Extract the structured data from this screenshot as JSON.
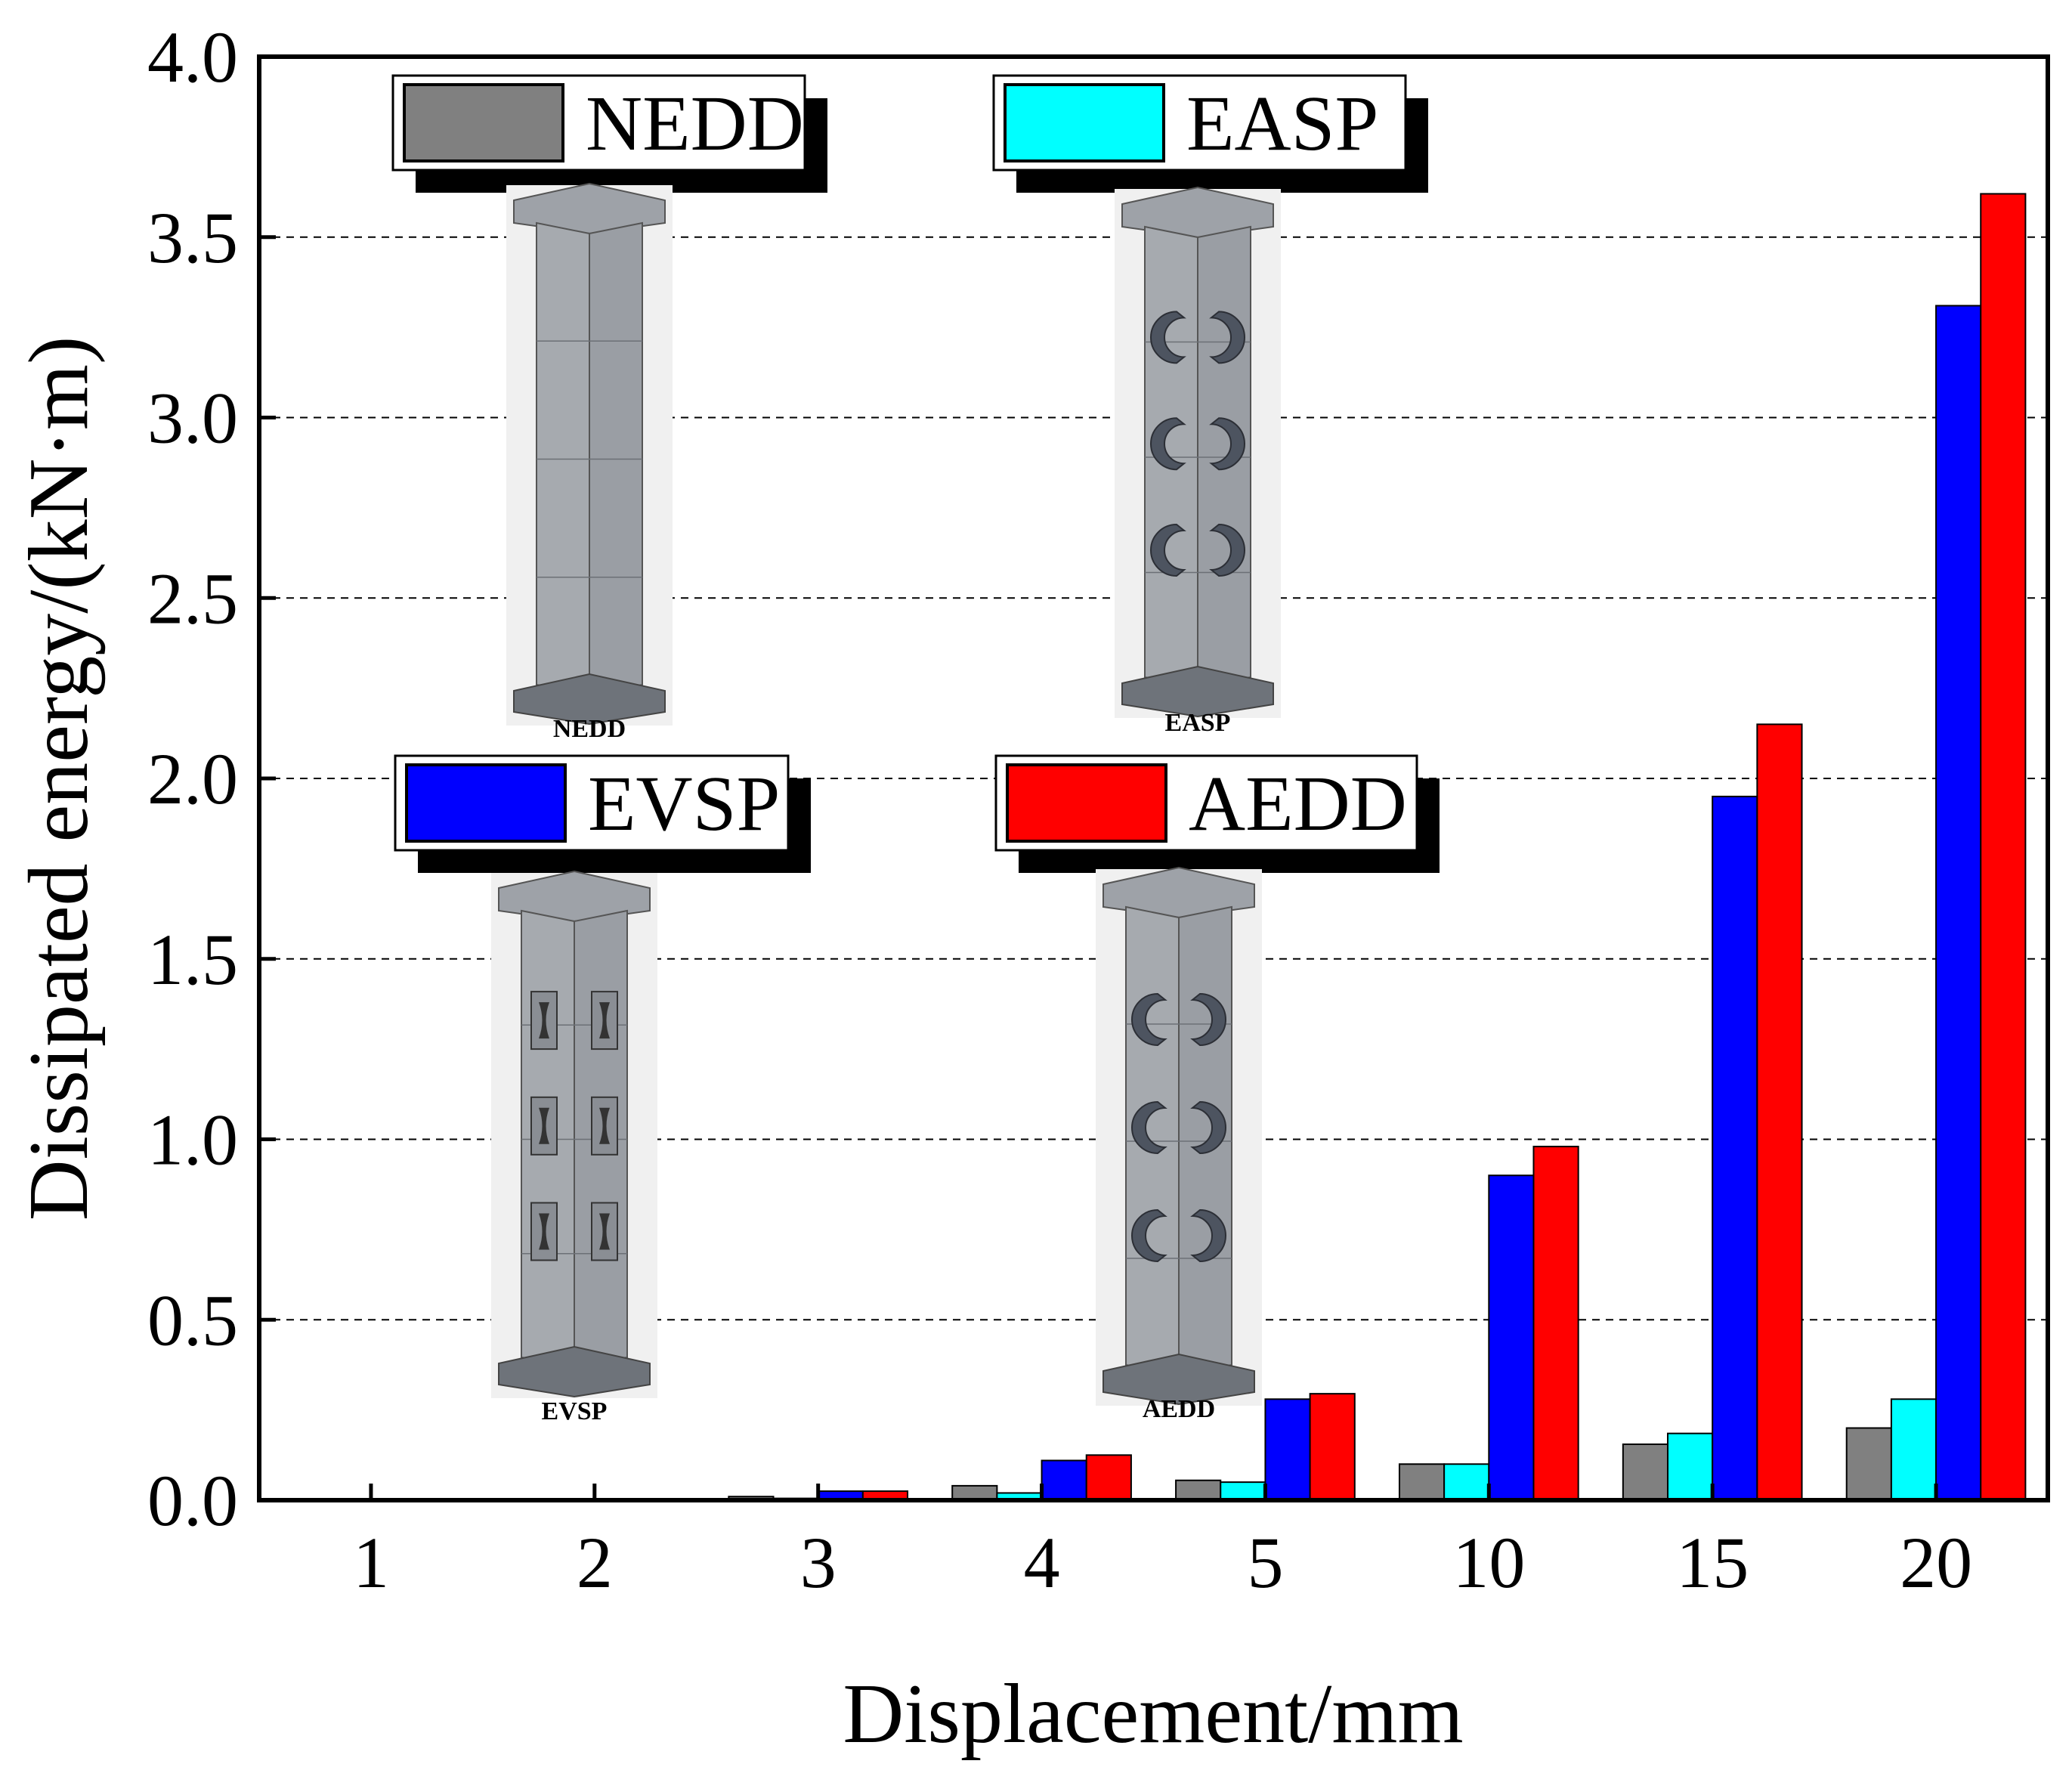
{
  "chart_data": {
    "type": "bar",
    "xlabel": "Displacement/mm",
    "ylabel": "Dissipated energy/(kN·m)",
    "ylim": [
      0,
      4.0
    ],
    "yticks": [
      "0.0",
      "0.5",
      "1.0",
      "1.5",
      "2.0",
      "2.5",
      "3.0",
      "3.5",
      "4.0"
    ],
    "categories": [
      "1",
      "2",
      "3",
      "4",
      "5",
      "10",
      "15",
      "20"
    ],
    "grid": "horizontal dashed",
    "series": [
      {
        "name": "NEDD",
        "color": "#808080",
        "values": [
          0.0,
          0.0,
          0.01,
          0.04,
          0.055,
          0.1,
          0.155,
          0.2
        ]
      },
      {
        "name": "EASP",
        "color": "#00ffff",
        "values": [
          0.0,
          0.0,
          0.005,
          0.02,
          0.05,
          0.1,
          0.185,
          0.28
        ]
      },
      {
        "name": "EVSP",
        "color": "#0000ff",
        "values": [
          0.0,
          0.0,
          0.025,
          0.11,
          0.28,
          0.9,
          1.95,
          3.31
        ]
      },
      {
        "name": "AEDD",
        "color": "#ff0000",
        "values": [
          0.0,
          0.0,
          0.025,
          0.125,
          0.295,
          0.98,
          2.15,
          3.62
        ]
      }
    ],
    "legend": "inset, upper-left, two rows with column illustrations",
    "illustrations": [
      {
        "caption": "NEDD",
        "damper": "none"
      },
      {
        "caption": "EASP",
        "damper": "arc"
      },
      {
        "caption": "EVSP",
        "damper": "slit"
      },
      {
        "caption": "AEDD",
        "damper": "arc"
      }
    ]
  }
}
